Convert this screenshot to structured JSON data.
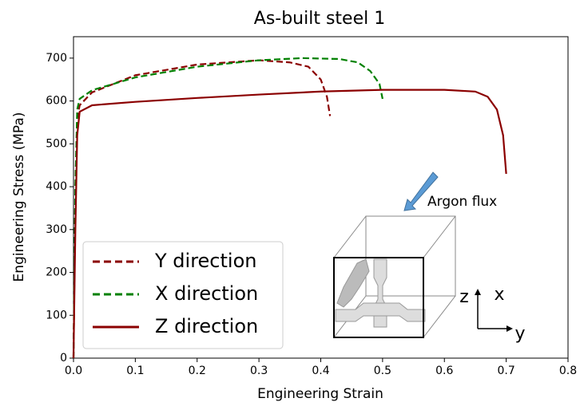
{
  "chart_data": {
    "type": "line",
    "title": "As-built steel 1",
    "xlabel": "Engineering Strain",
    "ylabel": "Engineering Stress (MPa)",
    "xlim": [
      0,
      0.8
    ],
    "ylim": [
      0,
      750
    ],
    "xticks": [
      {
        "value": 0,
        "label": "0.0"
      },
      0.1,
      0.2,
      0.3,
      0.4,
      0.5,
      0.6,
      0.7,
      0.8
    ],
    "yticks": [
      0,
      100,
      200,
      300,
      400,
      500,
      600,
      700
    ],
    "grid": false,
    "legend": "lower left",
    "series": [
      {
        "name": "Y direction",
        "color": "#8b0000",
        "dash": "dashed",
        "x": [
          0,
          0.003,
          0.006,
          0.01,
          0.03,
          0.1,
          0.2,
          0.3,
          0.35,
          0.38,
          0.4,
          0.41,
          0.415
        ],
        "values": [
          0,
          400,
          560,
          590,
          620,
          660,
          685,
          695,
          690,
          680,
          650,
          610,
          565
        ]
      },
      {
        "name": "X direction",
        "color": "#008000",
        "dash": "dashed",
        "x": [
          0,
          0.003,
          0.006,
          0.01,
          0.03,
          0.1,
          0.2,
          0.3,
          0.37,
          0.43,
          0.46,
          0.48,
          0.495,
          0.5
        ],
        "values": [
          0,
          400,
          580,
          605,
          625,
          655,
          680,
          695,
          700,
          698,
          690,
          670,
          640,
          605
        ]
      },
      {
        "name": "Z direction",
        "color": "#8b0000",
        "dash": "solid",
        "x": [
          0,
          0.003,
          0.006,
          0.01,
          0.03,
          0.1,
          0.2,
          0.3,
          0.4,
          0.5,
          0.6,
          0.65,
          0.67,
          0.685,
          0.695,
          0.7
        ],
        "values": [
          0,
          300,
          520,
          575,
          590,
          598,
          607,
          615,
          622,
          626,
          626,
          622,
          610,
          580,
          520,
          430
        ]
      }
    ],
    "annotations": [
      "Argon flux",
      "z",
      "x",
      "y"
    ]
  }
}
